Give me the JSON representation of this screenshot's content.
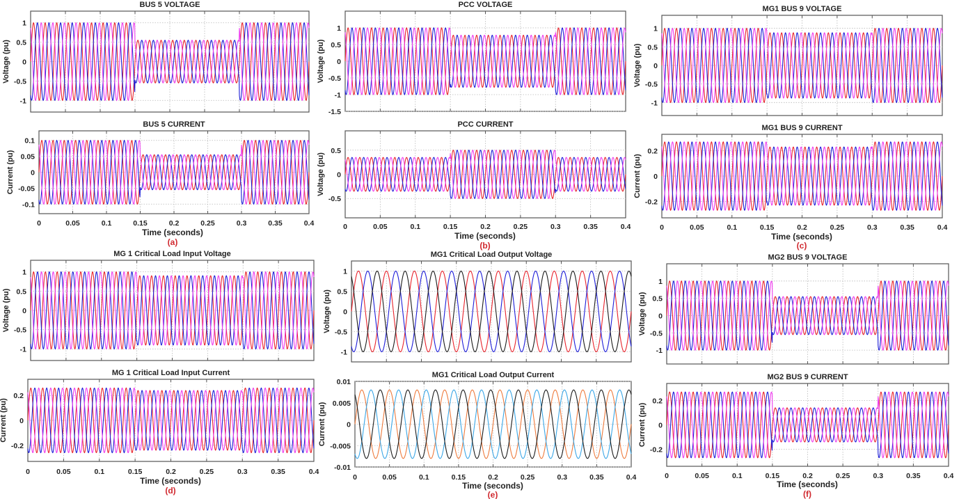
{
  "panels": [
    {
      "id": "a",
      "label": "(a)",
      "xlabel": "Time (seconds)"
    },
    {
      "id": "b",
      "label": "(b)",
      "xlabel": "Time (seconds)"
    },
    {
      "id": "c",
      "label": "(c)",
      "xlabel": "Time (seconds)"
    },
    {
      "id": "d",
      "label": "(d)",
      "xlabel": "Time (seconds)"
    },
    {
      "id": "e",
      "label": "(e)",
      "xlabel": "Time (seconds)"
    },
    {
      "id": "f",
      "label": "(f)",
      "xlabel": "Time (seconds)"
    }
  ],
  "chart_data": [
    {
      "panel": "a",
      "type": "line",
      "title": "BUS 5 VOLTAGE",
      "ylabel": "Voltage (pu)",
      "xlim": [
        0,
        0.4
      ],
      "ylim": [
        -1.3,
        1.3
      ],
      "yticks": [
        -1,
        -0.5,
        0,
        0.5,
        1
      ],
      "grid": true,
      "frequency_hz": 60,
      "segments_s": [
        0,
        0.15,
        0.3,
        0.4
      ],
      "series": [
        {
          "color": "#e8222b",
          "phase_deg": 0,
          "amplitude": [
            1,
            0.55,
            1
          ]
        },
        {
          "color": "#1c1cd8",
          "phase_deg": -120,
          "amplitude": [
            1,
            0.55,
            1
          ]
        },
        {
          "color": "#ee3bee",
          "phase_deg": 120,
          "amplitude": [
            1,
            0.55,
            1
          ]
        }
      ]
    },
    {
      "panel": "a",
      "type": "line",
      "title": "BUS 5 CURRENT",
      "ylabel": "Current (pu)",
      "xlim": [
        0,
        0.4
      ],
      "ylim": [
        -0.13,
        0.13
      ],
      "yticks": [
        -0.1,
        -0.05,
        0,
        0.05,
        0.1
      ],
      "xticks": [
        "0",
        "0.05",
        "0.1",
        "0.15",
        "0.2",
        "0.25",
        "0.3",
        "0.35",
        "0.4"
      ],
      "grid": true,
      "frequency_hz": 60,
      "segments_s": [
        0,
        0.15,
        0.3,
        0.4
      ],
      "series": [
        {
          "color": "#e8222b",
          "phase_deg": 0,
          "amplitude": [
            0.1,
            0.055,
            0.1
          ]
        },
        {
          "color": "#1c1cd8",
          "phase_deg": -120,
          "amplitude": [
            0.1,
            0.055,
            0.1
          ]
        },
        {
          "color": "#ee3bee",
          "phase_deg": 120,
          "amplitude": [
            0.1,
            0.055,
            0.1
          ]
        }
      ]
    },
    {
      "panel": "b",
      "type": "line",
      "title": "PCC VOLTAGE",
      "ylabel": "Voltage (pu)",
      "xlim": [
        0,
        0.4
      ],
      "ylim": [
        -1.5,
        1.5
      ],
      "yticks": [
        -1.5,
        -1,
        -0.5,
        0,
        0.5,
        1
      ],
      "grid": true,
      "frequency_hz": 60,
      "segments_s": [
        0,
        0.15,
        0.3,
        0.4
      ],
      "series": [
        {
          "color": "#e8222b",
          "phase_deg": 0,
          "amplitude": [
            1,
            0.78,
            1
          ]
        },
        {
          "color": "#1c1cd8",
          "phase_deg": -120,
          "amplitude": [
            1,
            0.78,
            1
          ]
        },
        {
          "color": "#ee3bee",
          "phase_deg": 120,
          "amplitude": [
            1,
            0.78,
            1
          ]
        }
      ]
    },
    {
      "panel": "b",
      "type": "line",
      "title": "PCC CURRENT",
      "ylabel": "Voltage (pu)",
      "xlim": [
        0,
        0.4
      ],
      "ylim": [
        -0.9,
        0.9
      ],
      "yticks": [
        -0.5,
        0,
        0.5
      ],
      "xticks": [
        "0",
        "0.05",
        "0.1",
        "0.15",
        "0.2",
        "0.25",
        "0.3",
        "0.35",
        "0.4"
      ],
      "grid": true,
      "frequency_hz": 60,
      "segments_s": [
        0,
        0.15,
        0.3,
        0.4
      ],
      "series": [
        {
          "color": "#e8222b",
          "phase_deg": 0,
          "amplitude": [
            0.35,
            0.5,
            0.35
          ]
        },
        {
          "color": "#1c1cd8",
          "phase_deg": -120,
          "amplitude": [
            0.35,
            0.5,
            0.35
          ]
        },
        {
          "color": "#ee3bee",
          "phase_deg": 120,
          "amplitude": [
            0.35,
            0.5,
            0.35
          ]
        }
      ]
    },
    {
      "panel": "c",
      "type": "line",
      "title": "MG1 BUS 9 VOLTAGE",
      "ylabel": "Voltage (pu)",
      "xlim": [
        0,
        0.4
      ],
      "ylim": [
        -1.35,
        1.35
      ],
      "yticks": [
        -1,
        -0.5,
        0,
        0.5,
        1
      ],
      "grid": true,
      "frequency_hz": 60,
      "segments_s": [
        0,
        0.15,
        0.3,
        0.4
      ],
      "series": [
        {
          "color": "#e8222b",
          "phase_deg": 0,
          "amplitude": [
            1,
            0.88,
            1
          ]
        },
        {
          "color": "#1c1cd8",
          "phase_deg": -120,
          "amplitude": [
            1,
            0.88,
            1
          ]
        },
        {
          "color": "#ee3bee",
          "phase_deg": 120,
          "amplitude": [
            1,
            0.88,
            1
          ]
        }
      ]
    },
    {
      "panel": "c",
      "type": "line",
      "title": "MG1 BUS 9 CURRENT",
      "ylabel": "Current (pu)",
      "xlim": [
        0,
        0.4
      ],
      "ylim": [
        -0.33,
        0.33
      ],
      "yticks": [
        -0.2,
        0,
        0.2
      ],
      "xticks": [
        "0",
        "0.05",
        "0.1",
        "0.15",
        "0.2",
        "0.25",
        "0.3",
        "0.35",
        "0.4"
      ],
      "grid": true,
      "frequency_hz": 60,
      "segments_s": [
        0,
        0.15,
        0.3,
        0.4
      ],
      "series": [
        {
          "color": "#e8222b",
          "phase_deg": 0,
          "amplitude": [
            0.27,
            0.23,
            0.27
          ]
        },
        {
          "color": "#1c1cd8",
          "phase_deg": -120,
          "amplitude": [
            0.27,
            0.23,
            0.27
          ]
        },
        {
          "color": "#ee3bee",
          "phase_deg": 120,
          "amplitude": [
            0.27,
            0.23,
            0.27
          ]
        }
      ]
    },
    {
      "panel": "d",
      "type": "line",
      "title": "MG 1 Critical Load Input Voltage",
      "ylabel": "Voltage (pu)",
      "xlim": [
        0,
        0.4
      ],
      "ylim": [
        -1.3,
        1.3
      ],
      "yticks": [
        -1,
        -0.5,
        0,
        0.5,
        1
      ],
      "grid": true,
      "frequency_hz": 60,
      "segments_s": [
        0,
        0.15,
        0.3,
        0.4
      ],
      "series": [
        {
          "color": "#e8222b",
          "phase_deg": 0,
          "amplitude": [
            1,
            0.9,
            1
          ]
        },
        {
          "color": "#1c1cd8",
          "phase_deg": -120,
          "amplitude": [
            1,
            0.9,
            1
          ]
        },
        {
          "color": "#ee3bee",
          "phase_deg": 120,
          "amplitude": [
            1,
            0.9,
            1
          ]
        }
      ]
    },
    {
      "panel": "d",
      "type": "line",
      "title": "MG 1 Critical Load Input Current",
      "ylabel": "Current (pu)",
      "xlim": [
        0,
        0.4
      ],
      "ylim": [
        -0.33,
        0.33
      ],
      "yticks": [
        -0.2,
        0,
        0.2
      ],
      "xticks": [
        "0",
        "0.05",
        "0.1",
        "0.15",
        "0.2",
        "0.25",
        "0.3",
        "0.35",
        "0.4"
      ],
      "grid": true,
      "frequency_hz": 60,
      "segments_s": [
        0,
        0.15,
        0.3,
        0.4
      ],
      "series": [
        {
          "color": "#e8222b",
          "phase_deg": 0,
          "amplitude": [
            0.26,
            0.24,
            0.26
          ]
        },
        {
          "color": "#1c1cd8",
          "phase_deg": -120,
          "amplitude": [
            0.26,
            0.24,
            0.26
          ]
        },
        {
          "color": "#ee3bee",
          "phase_deg": 120,
          "amplitude": [
            0.26,
            0.24,
            0.26
          ]
        }
      ]
    },
    {
      "panel": "e",
      "type": "line",
      "title": "MG1 Critical Load Output Voltage",
      "ylabel": "Voltage (pu)",
      "xlim": [
        0,
        0.4
      ],
      "ylim": [
        -1.25,
        1.25
      ],
      "yticks": [
        -1,
        -0.5,
        0,
        0.5,
        1
      ],
      "grid": true,
      "frequency_hz": 25,
      "segments_s": [
        0,
        0.4
      ],
      "series": [
        {
          "color": "#e8222b",
          "phase_deg": 0,
          "amplitude": [
            1
          ]
        },
        {
          "color": "#1c1cd8",
          "phase_deg": -120,
          "amplitude": [
            1
          ]
        },
        {
          "color": "#1a1a1a",
          "phase_deg": 120,
          "amplitude": [
            1
          ]
        }
      ]
    },
    {
      "panel": "e",
      "type": "line",
      "title": "MG1 Critical Load Output Current",
      "ylabel": "Current (pu)",
      "xlim": [
        0,
        0.4
      ],
      "ylim": [
        -0.01,
        0.01
      ],
      "yticks": [
        -0.01,
        -0.005,
        0,
        0.005,
        0.01
      ],
      "xticks": [
        "0",
        "0.05",
        "0.1",
        "0.15",
        "0.2",
        "0.25",
        "0.3",
        "0.35",
        "0.4"
      ],
      "grid": true,
      "frequency_hz": 25,
      "segments_s": [
        0,
        0.4
      ],
      "series": [
        {
          "color": "#ee7a3c",
          "phase_deg": 0,
          "amplitude": [
            0.008
          ]
        },
        {
          "color": "#3aa6e6",
          "phase_deg": -120,
          "amplitude": [
            0.008
          ]
        },
        {
          "color": "#1a1a1a",
          "phase_deg": 120,
          "amplitude": [
            0.008
          ]
        }
      ]
    },
    {
      "panel": "f",
      "type": "line",
      "title": "MG2  BUS 9 VOLTAGE",
      "ylabel": "Voltage (pu)",
      "xlim": [
        0,
        0.4
      ],
      "ylim": [
        -1.4,
        1.5
      ],
      "yticks": [
        -1,
        -0.5,
        0,
        0.5,
        1
      ],
      "grid": true,
      "frequency_hz": 60,
      "segments_s": [
        0,
        0.15,
        0.3,
        0.4
      ],
      "series": [
        {
          "color": "#e8222b",
          "phase_deg": 0,
          "amplitude": [
            1,
            0.55,
            1
          ]
        },
        {
          "color": "#1c1cd8",
          "phase_deg": -120,
          "amplitude": [
            1,
            0.55,
            1
          ]
        },
        {
          "color": "#ee3bee",
          "phase_deg": 120,
          "amplitude": [
            1,
            0.55,
            1
          ]
        }
      ]
    },
    {
      "panel": "f",
      "type": "line",
      "title": "MG2  BUS 9 CURRENT",
      "ylabel": "Current (pu)",
      "xlim": [
        0,
        0.4
      ],
      "ylim": [
        -0.34,
        0.34
      ],
      "yticks": [
        -0.2,
        0,
        0.2
      ],
      "xticks": [
        "0",
        "0.05",
        "0.1",
        "0.15",
        "0.2",
        "0.25",
        "0.3",
        "0.35",
        "0.4"
      ],
      "grid": true,
      "frequency_hz": 60,
      "segments_s": [
        0,
        0.15,
        0.3,
        0.4
      ],
      "series": [
        {
          "color": "#e8222b",
          "phase_deg": 0,
          "amplitude": [
            0.27,
            0.14,
            0.27
          ]
        },
        {
          "color": "#1c1cd8",
          "phase_deg": -120,
          "amplitude": [
            0.27,
            0.14,
            0.27
          ]
        },
        {
          "color": "#ee3bee",
          "phase_deg": 120,
          "amplitude": [
            0.27,
            0.14,
            0.27
          ]
        }
      ]
    }
  ]
}
